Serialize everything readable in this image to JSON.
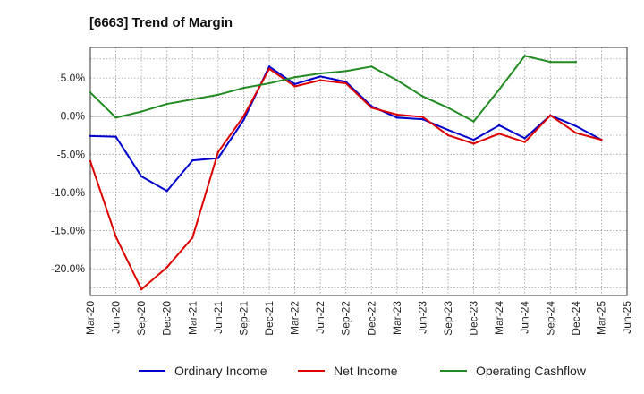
{
  "chart_data": {
    "type": "line",
    "title": "[6663]  Trend of Margin",
    "xlabel": "",
    "ylabel": "",
    "x_tick_labels": [
      "Mar-20",
      "Jun-20",
      "Sep-20",
      "Dec-20",
      "Mar-21",
      "Jun-21",
      "Sep-21",
      "Dec-21",
      "Mar-22",
      "Jun-22",
      "Sep-22",
      "Dec-22",
      "Mar-23",
      "Jun-23",
      "Sep-23",
      "Dec-23",
      "Mar-24",
      "Jun-24",
      "Sep-24",
      "Dec-24",
      "Mar-25",
      "Jun-25"
    ],
    "ylim": [
      -23.5,
      9.0
    ],
    "y_ticks": [
      5,
      0,
      -5,
      -10,
      -15,
      -20
    ],
    "y_tick_labels": [
      "5.0%",
      "0.0%",
      "-5.0%",
      "-10.0%",
      "-15.0%",
      "-20.0%"
    ],
    "grid": true,
    "legend_position": "bottom",
    "series": [
      {
        "name": "Ordinary Income",
        "color": "#0000cc",
        "values": [
          -2.6,
          -2.7,
          -7.9,
          -9.8,
          -5.8,
          -5.5,
          -0.5,
          6.5,
          4.2,
          5.2,
          4.5,
          1.3,
          -0.2,
          -0.4,
          -1.8,
          -3.1,
          -1.2,
          -2.9,
          0.1,
          -1.3,
          -3.1,
          null
        ]
      },
      {
        "name": "Net Income",
        "color": "#dd0000",
        "values": [
          -5.9,
          -15.8,
          -22.7,
          -19.8,
          -15.9,
          -4.7,
          0.0,
          6.2,
          3.9,
          4.7,
          4.3,
          1.1,
          0.2,
          -0.1,
          -2.5,
          -3.6,
          -2.3,
          -3.4,
          0.1,
          -2.2,
          -3.1,
          null
        ]
      },
      {
        "name": "Operating Cashflow",
        "color": "#228b22",
        "values": [
          3.1,
          -0.2,
          0.6,
          1.6,
          2.2,
          2.8,
          3.7,
          4.3,
          5.1,
          5.6,
          5.9,
          6.5,
          4.7,
          2.6,
          1.1,
          -0.7,
          3.5,
          7.9,
          7.1,
          7.1,
          null,
          null
        ]
      }
    ]
  }
}
